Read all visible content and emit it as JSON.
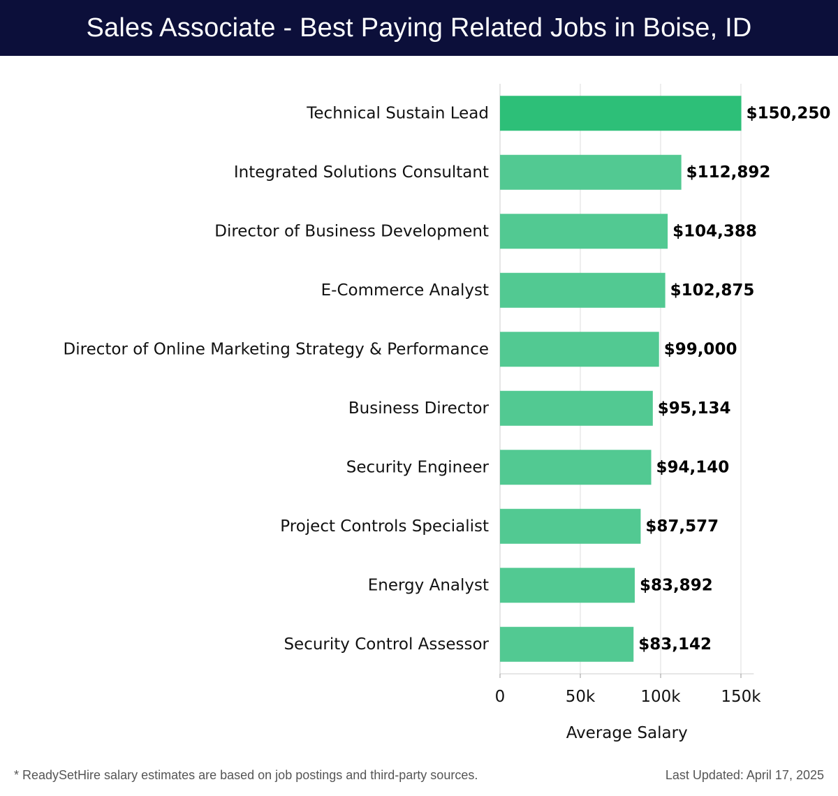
{
  "header": {
    "title": "Sales Associate - Best Paying Related Jobs in Boise, ID"
  },
  "chart_data": {
    "type": "bar",
    "orientation": "horizontal",
    "title": "Sales Associate - Best Paying Related Jobs in Boise, ID",
    "categories": [
      "Technical Sustain Lead",
      "Integrated Solutions Consultant",
      "Director of Business Development",
      "E-Commerce Analyst",
      "Director of Online Marketing Strategy & Performance",
      "Business Director",
      "Security Engineer",
      "Project Controls Specialist",
      "Energy Analyst",
      "Security Control Assessor"
    ],
    "values": [
      150250,
      112892,
      104388,
      102875,
      99000,
      95134,
      94140,
      87577,
      83892,
      83142
    ],
    "value_labels": [
      "$150,250",
      "$112,892",
      "$104,388",
      "$102,875",
      "$99,000",
      "$95,134",
      "$94,140",
      "$87,577",
      "$83,892",
      "$83,142"
    ],
    "xlabel": "Average Salary",
    "ylabel": "",
    "xlim": [
      0,
      158000
    ],
    "xticks": [
      0,
      50000,
      100000,
      150000
    ],
    "xtick_labels": [
      "0",
      "50k",
      "100k",
      "150k"
    ],
    "grid": true,
    "colors": {
      "top_bar": "#2dbf78",
      "bar": "#52c992",
      "grid": "#dddddd",
      "axis": "#cccccc"
    }
  },
  "footer": {
    "note": "* ReadySetHire salary estimates are based on job postings and third-party sources.",
    "updated": "Last Updated: April 17, 2025"
  }
}
